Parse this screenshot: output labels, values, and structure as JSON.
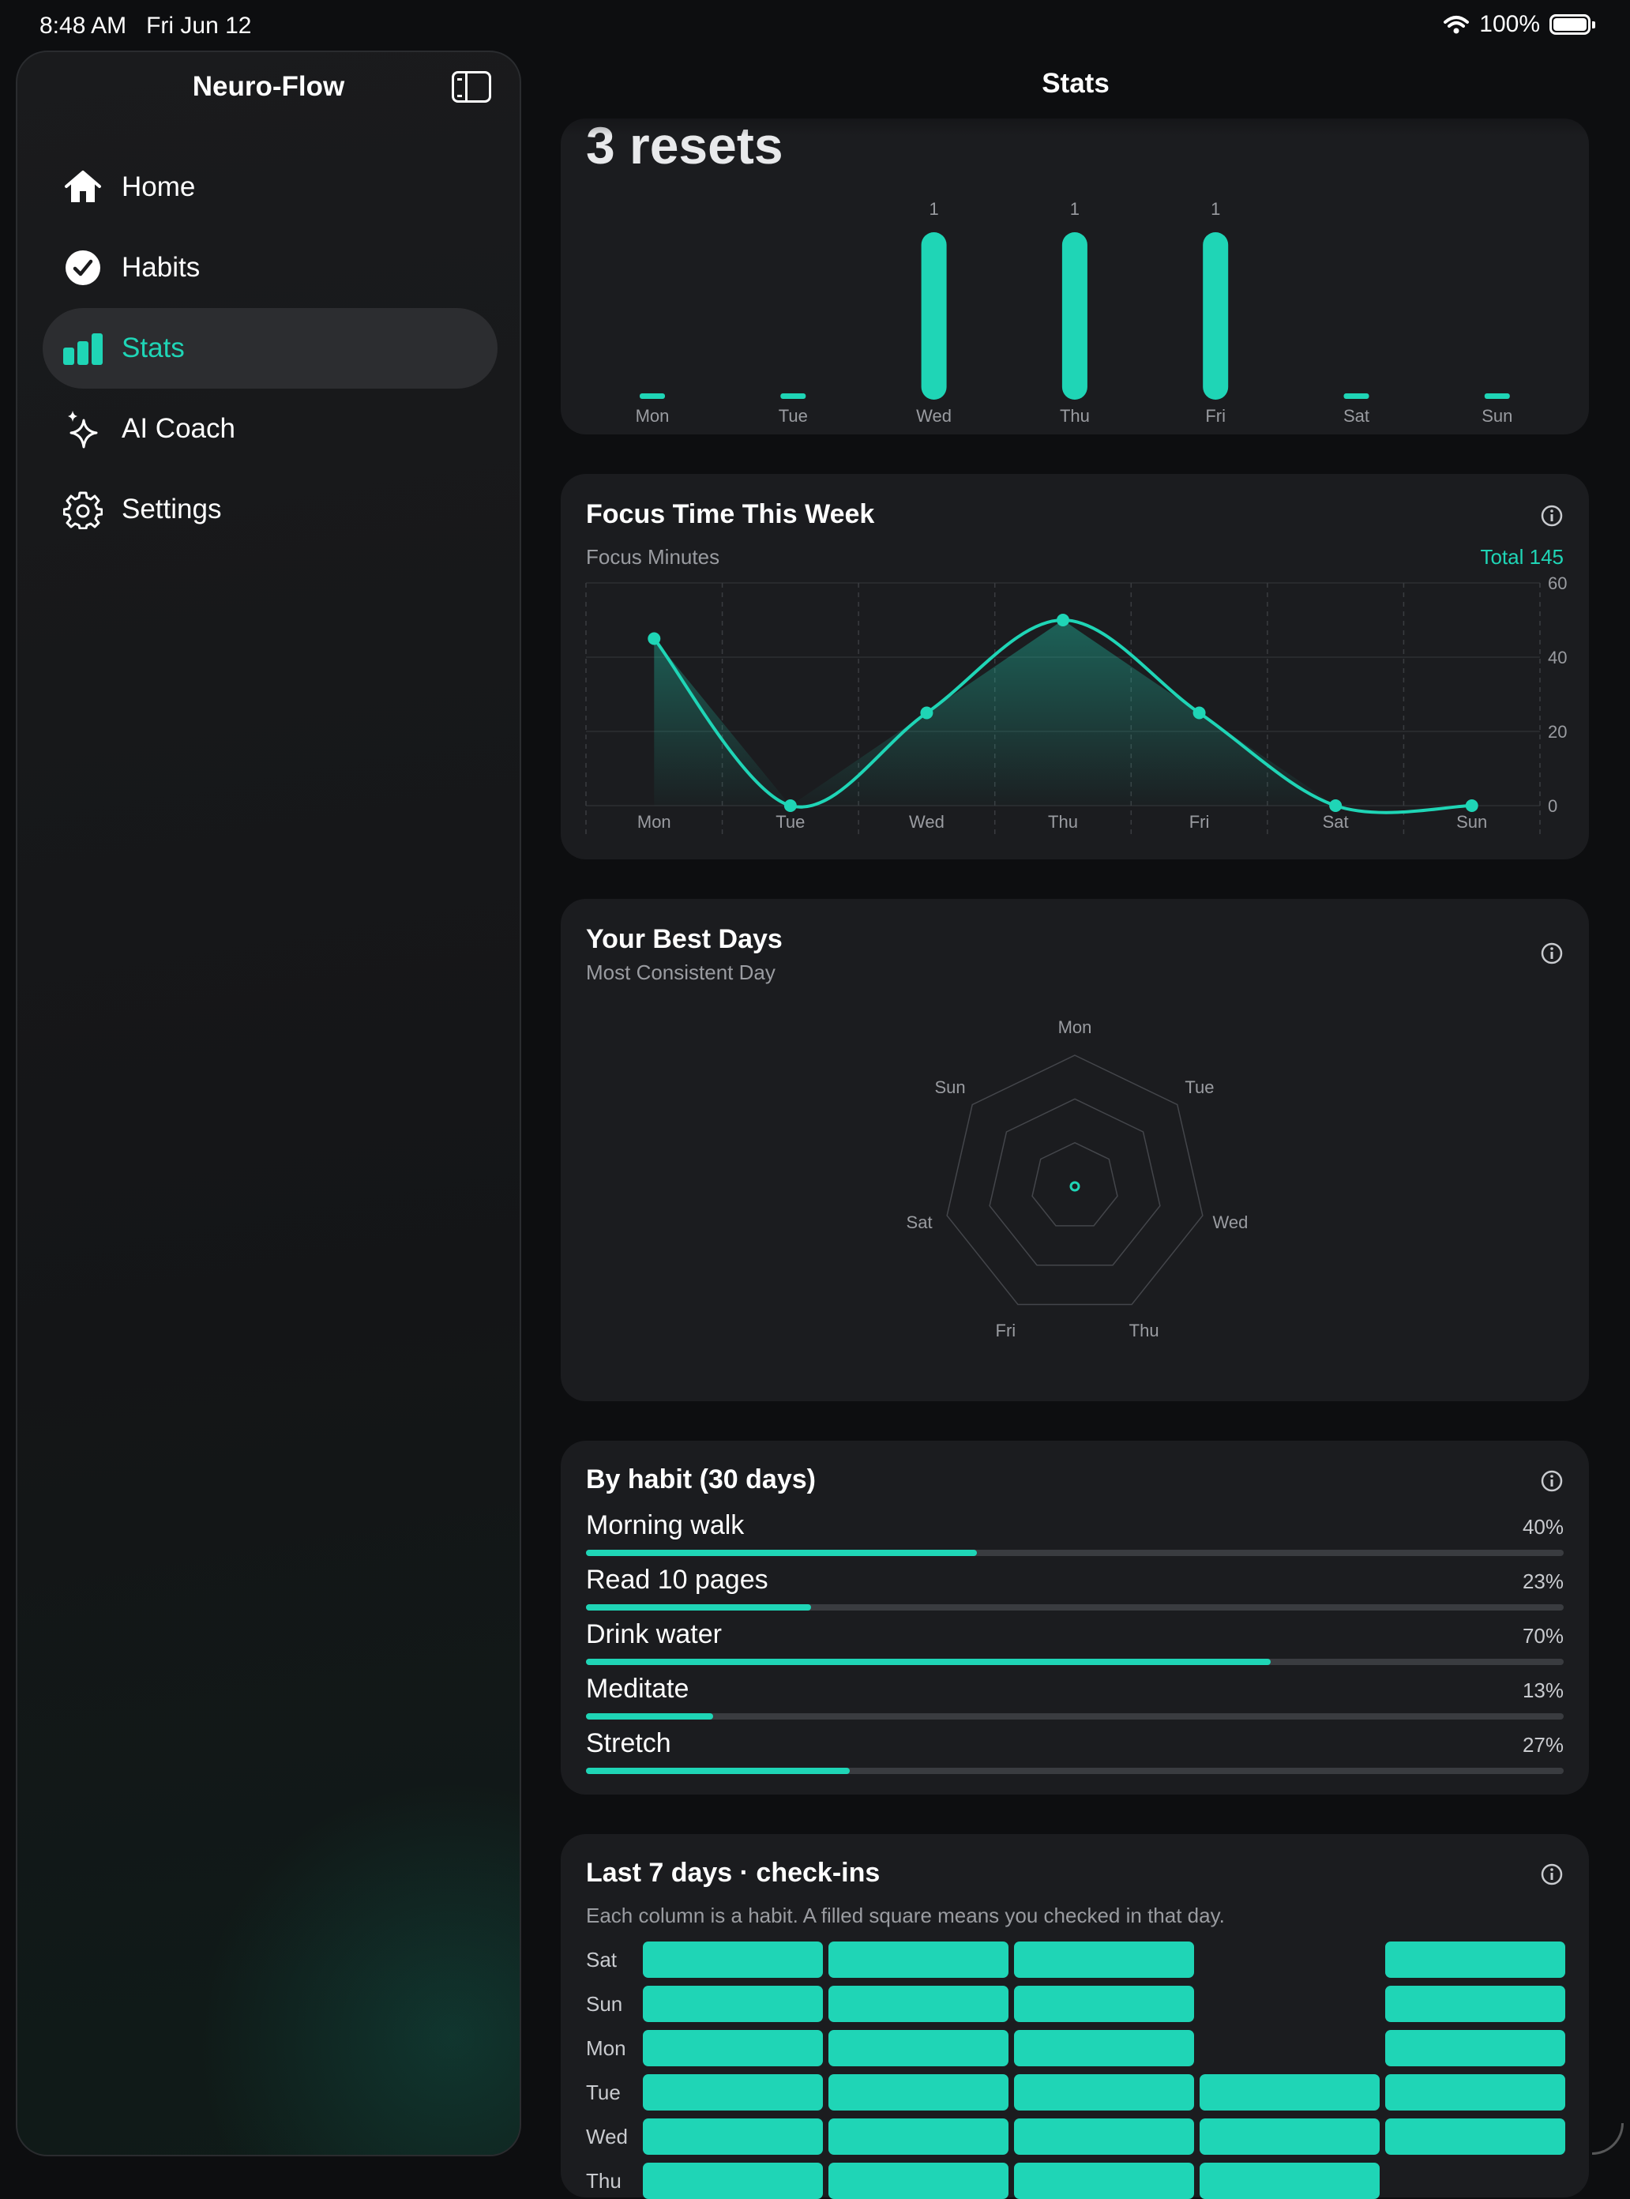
{
  "status_bar": {
    "time": "8:48 AM",
    "date": "Fri Jun 12",
    "battery": "100%"
  },
  "sidebar": {
    "title": "Neuro-Flow",
    "items": [
      {
        "label": "Home",
        "icon": "house-icon",
        "active": false
      },
      {
        "label": "Habits",
        "icon": "checkmark-circle-icon",
        "active": false
      },
      {
        "label": "Stats",
        "icon": "bar-chart-icon",
        "active": true
      },
      {
        "label": "AI Coach",
        "icon": "sparkles-icon",
        "active": false
      },
      {
        "label": "Settings",
        "icon": "gear-icon",
        "active": false
      }
    ]
  },
  "header": {
    "title": "Stats"
  },
  "resets_card": {
    "headline": "3 resets"
  },
  "focus_card": {
    "title": "Focus Time This Week",
    "subtitle": "Focus Minutes",
    "total": "Total 145"
  },
  "best_days_card": {
    "title": "Your Best Days",
    "subtitle": "Most Consistent Day"
  },
  "habits_card": {
    "title": "By habit (30 days)",
    "habits": [
      {
        "name": "Morning walk",
        "pct_label": "40%",
        "value": 40
      },
      {
        "name": "Read 10 pages",
        "pct_label": "23%",
        "value": 23
      },
      {
        "name": "Drink water",
        "pct_label": "70%",
        "value": 70
      },
      {
        "name": "Meditate",
        "pct_label": "13%",
        "value": 13
      },
      {
        "name": "Stretch",
        "pct_label": "27%",
        "value": 27
      }
    ]
  },
  "checkins_card": {
    "title": "Last 7 days · check-ins",
    "subtitle": "Each column is a habit. A filled square means you checked in that day.",
    "rows": [
      {
        "day": "Sat",
        "cells": [
          true,
          true,
          true,
          false,
          true
        ]
      },
      {
        "day": "Sun",
        "cells": [
          true,
          true,
          true,
          false,
          true
        ]
      },
      {
        "day": "Mon",
        "cells": [
          true,
          true,
          true,
          false,
          true
        ]
      },
      {
        "day": "Tue",
        "cells": [
          true,
          true,
          true,
          true,
          true
        ]
      },
      {
        "day": "Wed",
        "cells": [
          true,
          true,
          true,
          true,
          true
        ]
      },
      {
        "day": "Thu",
        "cells": [
          true,
          true,
          true,
          true,
          false
        ]
      }
    ]
  },
  "colors": {
    "accent": "#1fd5b6",
    "card": "#1b1c1f",
    "background": "#0d0e10"
  },
  "chart_data": [
    {
      "type": "bar",
      "categories": [
        "Mon",
        "Tue",
        "Wed",
        "Thu",
        "Fri",
        "Sat",
        "Sun"
      ],
      "values": [
        0,
        0,
        1,
        1,
        1,
        0,
        0
      ],
      "data_labels": [
        "",
        "",
        "1",
        "1",
        "1",
        "",
        ""
      ]
    },
    {
      "type": "area",
      "categories": [
        "Mon",
        "Tue",
        "Wed",
        "Thu",
        "Fri",
        "Sat",
        "Sun"
      ],
      "values": [
        45,
        0,
        25,
        50,
        25,
        0,
        0
      ],
      "ylim": [
        0,
        60
      ],
      "yticks": [
        "0",
        "20",
        "40",
        "60"
      ]
    },
    {
      "type": "radar",
      "categories": [
        "Mon",
        "Tue",
        "Wed",
        "Thu",
        "Fri",
        "Sat",
        "Sun"
      ],
      "values": [
        0,
        0,
        0,
        0,
        0,
        0,
        0
      ]
    }
  ]
}
